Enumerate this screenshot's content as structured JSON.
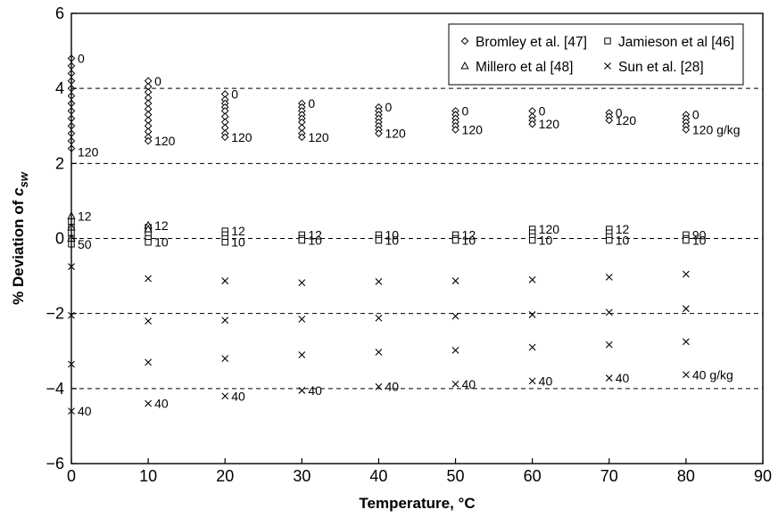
{
  "chart_data": {
    "type": "scatter",
    "xlabel": "Temperature, °C",
    "ylabel": "% Deviation of ",
    "ylabel_symbol": "c",
    "ylabel_subscript": "sw",
    "xlim": [
      0,
      90
    ],
    "ylim": [
      -6,
      6
    ],
    "xticks": [
      0,
      10,
      20,
      30,
      40,
      50,
      60,
      70,
      80,
      90
    ],
    "yticks": [
      -6,
      -4,
      -2,
      0,
      2,
      4,
      6
    ],
    "ytick_labels": [
      "−6",
      "−4",
      "−2",
      "0",
      "2",
      "4",
      "6"
    ],
    "reference_lines_y": [
      -4,
      -2,
      0,
      2,
      4
    ],
    "grid": false,
    "legend_position": "top-right",
    "series": [
      {
        "name": "Bromley et al. [47]",
        "marker": "diamond",
        "points": [
          [
            0,
            4.8
          ],
          [
            0,
            4.6
          ],
          [
            0,
            4.4
          ],
          [
            0,
            4.2
          ],
          [
            0,
            4.0
          ],
          [
            0,
            3.8
          ],
          [
            0,
            3.6
          ],
          [
            0,
            3.4
          ],
          [
            0,
            3.2
          ],
          [
            0,
            3.0
          ],
          [
            0,
            2.8
          ],
          [
            0,
            2.6
          ],
          [
            0,
            2.4
          ],
          [
            10,
            4.2
          ],
          [
            10,
            4.05
          ],
          [
            10,
            3.9
          ],
          [
            10,
            3.75
          ],
          [
            10,
            3.6
          ],
          [
            10,
            3.45
          ],
          [
            10,
            3.3
          ],
          [
            10,
            3.15
          ],
          [
            10,
            3.0
          ],
          [
            10,
            2.85
          ],
          [
            10,
            2.7
          ],
          [
            10,
            2.6
          ],
          [
            20,
            3.85
          ],
          [
            20,
            3.7
          ],
          [
            20,
            3.6
          ],
          [
            20,
            3.5
          ],
          [
            20,
            3.4
          ],
          [
            20,
            3.25
          ],
          [
            20,
            3.1
          ],
          [
            20,
            2.95
          ],
          [
            20,
            2.8
          ],
          [
            20,
            2.7
          ],
          [
            30,
            3.6
          ],
          [
            30,
            3.5
          ],
          [
            30,
            3.4
          ],
          [
            30,
            3.3
          ],
          [
            30,
            3.2
          ],
          [
            30,
            3.1
          ],
          [
            30,
            2.95
          ],
          [
            30,
            2.8
          ],
          [
            30,
            2.7
          ],
          [
            40,
            3.5
          ],
          [
            40,
            3.4
          ],
          [
            40,
            3.3
          ],
          [
            40,
            3.2
          ],
          [
            40,
            3.1
          ],
          [
            40,
            3.0
          ],
          [
            40,
            2.9
          ],
          [
            40,
            2.8
          ],
          [
            50,
            3.4
          ],
          [
            50,
            3.3
          ],
          [
            50,
            3.2
          ],
          [
            50,
            3.1
          ],
          [
            50,
            3.0
          ],
          [
            50,
            2.9
          ],
          [
            60,
            3.4
          ],
          [
            60,
            3.25
          ],
          [
            60,
            3.15
          ],
          [
            60,
            3.05
          ],
          [
            70,
            3.35
          ],
          [
            70,
            3.25
          ],
          [
            70,
            3.15
          ],
          [
            80,
            3.3
          ],
          [
            80,
            3.2
          ],
          [
            80,
            3.1
          ],
          [
            80,
            3.0
          ],
          [
            80,
            2.9
          ]
        ]
      },
      {
        "name": "Jamieson et al [46]",
        "marker": "square",
        "points": [
          [
            0,
            0.45
          ],
          [
            0,
            0.3
          ],
          [
            0,
            0.15
          ],
          [
            0,
            0.0
          ],
          [
            0,
            -0.15
          ],
          [
            10,
            0.3
          ],
          [
            10,
            0.2
          ],
          [
            10,
            0.1
          ],
          [
            10,
            0.0
          ],
          [
            10,
            -0.1
          ],
          [
            20,
            0.2
          ],
          [
            20,
            0.1
          ],
          [
            20,
            0.0
          ],
          [
            20,
            -0.1
          ],
          [
            30,
            0.1
          ],
          [
            30,
            0.0
          ],
          [
            30,
            -0.05
          ],
          [
            40,
            0.1
          ],
          [
            40,
            0.0
          ],
          [
            40,
            -0.05
          ],
          [
            50,
            0.1
          ],
          [
            50,
            0.0
          ],
          [
            50,
            -0.05
          ],
          [
            60,
            0.25
          ],
          [
            60,
            0.15
          ],
          [
            60,
            0.05
          ],
          [
            60,
            -0.05
          ],
          [
            70,
            0.25
          ],
          [
            70,
            0.15
          ],
          [
            70,
            0.05
          ],
          [
            70,
            -0.05
          ],
          [
            80,
            0.1
          ],
          [
            80,
            0.0
          ],
          [
            80,
            -0.05
          ]
        ]
      },
      {
        "name": "Millero et al [48]",
        "marker": "triangle",
        "points": [
          [
            0,
            0.6
          ],
          [
            0,
            0.3
          ],
          [
            0,
            0.0
          ],
          [
            10,
            0.35
          ],
          [
            10,
            0.25
          ]
        ]
      },
      {
        "name": "Sun et al. [28]",
        "marker": "x",
        "points": [
          [
            0,
            -0.75
          ],
          [
            0,
            -2.05
          ],
          [
            0,
            -3.35
          ],
          [
            0,
            -4.6
          ],
          [
            10,
            -1.07
          ],
          [
            10,
            -2.2
          ],
          [
            10,
            -3.3
          ],
          [
            10,
            -4.4
          ],
          [
            20,
            -1.13
          ],
          [
            20,
            -2.18
          ],
          [
            20,
            -3.2
          ],
          [
            20,
            -4.2
          ],
          [
            30,
            -1.18
          ],
          [
            30,
            -2.15
          ],
          [
            30,
            -3.1
          ],
          [
            30,
            -4.05
          ],
          [
            40,
            -1.15
          ],
          [
            40,
            -2.12
          ],
          [
            40,
            -3.03
          ],
          [
            40,
            -3.95
          ],
          [
            50,
            -1.13
          ],
          [
            50,
            -2.07
          ],
          [
            50,
            -2.98
          ],
          [
            50,
            -3.88
          ],
          [
            60,
            -1.1
          ],
          [
            60,
            -2.03
          ],
          [
            60,
            -2.9
          ],
          [
            60,
            -3.8
          ],
          [
            70,
            -1.03
          ],
          [
            70,
            -1.97
          ],
          [
            70,
            -2.83
          ],
          [
            70,
            -3.72
          ],
          [
            80,
            -0.95
          ],
          [
            80,
            -1.87
          ],
          [
            80,
            -2.75
          ],
          [
            80,
            -3.63
          ]
        ]
      }
    ],
    "annotations": [
      {
        "x": 0,
        "y": 4.8,
        "text": "0"
      },
      {
        "x": 0,
        "y": 2.3,
        "text": "120"
      },
      {
        "x": 10,
        "y": 4.2,
        "text": "0"
      },
      {
        "x": 10,
        "y": 2.6,
        "text": "120"
      },
      {
        "x": 20,
        "y": 3.85,
        "text": "0"
      },
      {
        "x": 20,
        "y": 2.7,
        "text": "120"
      },
      {
        "x": 30,
        "y": 3.6,
        "text": "0"
      },
      {
        "x": 30,
        "y": 2.7,
        "text": "120"
      },
      {
        "x": 40,
        "y": 3.5,
        "text": "0"
      },
      {
        "x": 40,
        "y": 2.8,
        "text": "120"
      },
      {
        "x": 50,
        "y": 3.4,
        "text": "0"
      },
      {
        "x": 50,
        "y": 2.9,
        "text": "120"
      },
      {
        "x": 60,
        "y": 3.4,
        "text": "0"
      },
      {
        "x": 60,
        "y": 3.05,
        "text": "120"
      },
      {
        "x": 70,
        "y": 3.35,
        "text": "0"
      },
      {
        "x": 70,
        "y": 3.15,
        "text": "120"
      },
      {
        "x": 80,
        "y": 3.3,
        "text": "0"
      },
      {
        "x": 80,
        "y": 2.9,
        "text": "120 g/kg"
      },
      {
        "x": 0,
        "y": 0.6,
        "text": "12"
      },
      {
        "x": 0,
        "y": -0.15,
        "text": "50"
      },
      {
        "x": 10,
        "y": 0.35,
        "text": "12"
      },
      {
        "x": 10,
        "y": -0.1,
        "text": "10"
      },
      {
        "x": 20,
        "y": 0.2,
        "text": "12"
      },
      {
        "x": 20,
        "y": -0.1,
        "text": "10"
      },
      {
        "x": 30,
        "y": 0.1,
        "text": "12"
      },
      {
        "x": 30,
        "y": -0.05,
        "text": "10"
      },
      {
        "x": 40,
        "y": 0.1,
        "text": "10"
      },
      {
        "x": 40,
        "y": -0.05,
        "text": "10"
      },
      {
        "x": 50,
        "y": 0.1,
        "text": "12"
      },
      {
        "x": 50,
        "y": -0.05,
        "text": "10"
      },
      {
        "x": 60,
        "y": 0.25,
        "text": "120"
      },
      {
        "x": 60,
        "y": -0.05,
        "text": "10"
      },
      {
        "x": 70,
        "y": 0.25,
        "text": "12"
      },
      {
        "x": 70,
        "y": -0.05,
        "text": "10"
      },
      {
        "x": 80,
        "y": 0.1,
        "text": "90"
      },
      {
        "x": 80,
        "y": -0.05,
        "text": "10"
      },
      {
        "x": 0,
        "y": -4.6,
        "text": "40"
      },
      {
        "x": 10,
        "y": -4.4,
        "text": "40"
      },
      {
        "x": 20,
        "y": -4.2,
        "text": "40"
      },
      {
        "x": 30,
        "y": -4.05,
        "text": "40"
      },
      {
        "x": 40,
        "y": -3.95,
        "text": "40"
      },
      {
        "x": 50,
        "y": -3.88,
        "text": "40"
      },
      {
        "x": 60,
        "y": -3.8,
        "text": "40"
      },
      {
        "x": 70,
        "y": -3.72,
        "text": "40"
      },
      {
        "x": 80,
        "y": -3.63,
        "text": "40 g/kg"
      }
    ]
  }
}
